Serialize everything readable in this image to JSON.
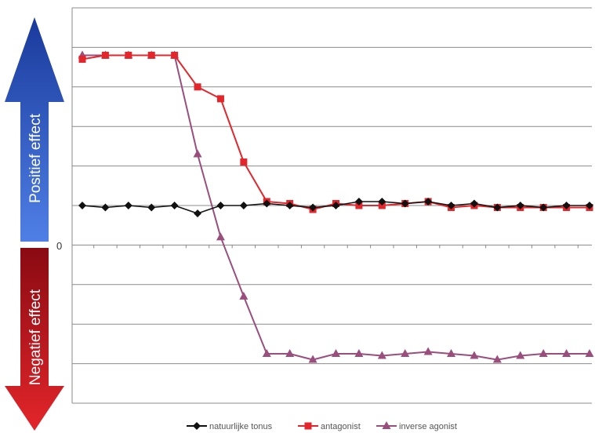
{
  "chart_data": {
    "type": "line",
    "x": [
      1,
      2,
      3,
      4,
      5,
      6,
      7,
      8,
      9,
      10,
      11,
      12,
      13,
      14,
      15,
      16,
      17,
      18,
      19,
      20,
      21,
      22,
      23
    ],
    "ylim": [
      -4,
      6
    ],
    "grid": true,
    "legend_position": "bottom",
    "zero_label": "0",
    "positive_label": "Positief effect",
    "negative_label": "Negatief effect",
    "series": [
      {
        "name": "natuurlijke tonus",
        "color": "#111111",
        "marker": "diamond",
        "values": [
          1.0,
          0.95,
          1.0,
          0.95,
          1.0,
          0.8,
          1.0,
          1.0,
          1.05,
          1.0,
          0.95,
          1.0,
          1.1,
          1.1,
          1.05,
          1.1,
          1.0,
          1.05,
          0.95,
          1.0,
          0.95,
          1.0,
          1.0
        ]
      },
      {
        "name": "antagonist",
        "color": "#e3262b",
        "marker": "square",
        "values": [
          4.7,
          4.8,
          4.8,
          4.8,
          4.8,
          4.0,
          3.7,
          2.1,
          1.1,
          1.05,
          0.9,
          1.05,
          1.0,
          1.0,
          1.05,
          1.1,
          0.95,
          1.0,
          0.95,
          0.95,
          0.95,
          0.95,
          0.95
        ]
      },
      {
        "name": "inverse agonist",
        "color": "#9a4e7e",
        "marker": "triangle",
        "values": [
          4.8,
          4.8,
          4.8,
          4.8,
          4.8,
          2.3,
          0.2,
          -1.3,
          -2.75,
          -2.75,
          -2.9,
          -2.75,
          -2.75,
          -2.8,
          -2.75,
          -2.7,
          -2.75,
          -2.8,
          -2.9,
          -2.8,
          -2.75,
          -2.75,
          -2.75
        ]
      }
    ]
  },
  "colors": {
    "positive_arrow_top": "#1a3a9c",
    "positive_arrow_bottom": "#4f7fe6",
    "negative_arrow_top": "#8a0a12",
    "negative_arrow_bottom": "#e3262b",
    "grid": "#8c8c8c"
  }
}
